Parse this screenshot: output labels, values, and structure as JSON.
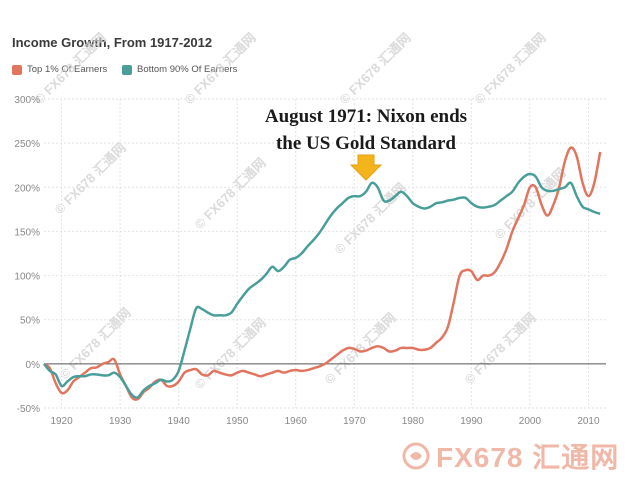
{
  "chart_data": {
    "type": "line",
    "title": "Income Growth, From 1917-2012",
    "xlabel": "",
    "ylabel": "",
    "xlim": [
      1917,
      2013
    ],
    "ylim": [
      -50,
      300
    ],
    "x_ticks": [
      1920,
      1930,
      1940,
      1950,
      1960,
      1970,
      1980,
      1990,
      2000,
      2010
    ],
    "y_ticks": [
      -50,
      0,
      50,
      100,
      150,
      200,
      250,
      300
    ],
    "y_tick_labels": [
      "-50%",
      "0%",
      "50%",
      "100%",
      "150%",
      "200%",
      "250%",
      "300%"
    ],
    "annotation": {
      "line1": "August 1971: Nixon ends",
      "line2": "the US Gold Standard",
      "x": 1972
    },
    "series": [
      {
        "name": "Top 1% Of Earners",
        "color": "#e07560",
        "x": [
          1917,
          1918,
          1919,
          1920,
          1921,
          1922,
          1923,
          1924,
          1925,
          1926,
          1927,
          1928,
          1929,
          1930,
          1931,
          1932,
          1933,
          1934,
          1935,
          1936,
          1937,
          1938,
          1939,
          1940,
          1941,
          1942,
          1943,
          1944,
          1945,
          1946,
          1947,
          1948,
          1949,
          1950,
          1951,
          1952,
          1953,
          1954,
          1955,
          1956,
          1957,
          1958,
          1959,
          1960,
          1961,
          1962,
          1963,
          1964,
          1965,
          1966,
          1967,
          1968,
          1969,
          1970,
          1971,
          1972,
          1973,
          1974,
          1975,
          1976,
          1977,
          1978,
          1979,
          1980,
          1981,
          1982,
          1983,
          1984,
          1985,
          1986,
          1987,
          1988,
          1989,
          1990,
          1991,
          1992,
          1993,
          1994,
          1995,
          1996,
          1997,
          1998,
          1999,
          2000,
          2001,
          2002,
          2003,
          2004,
          2005,
          2006,
          2007,
          2008,
          2009,
          2010,
          2011,
          2012
        ],
        "values": [
          0,
          -5,
          -22,
          -33,
          -30,
          -20,
          -15,
          -10,
          -5,
          -4,
          0,
          2,
          5,
          -12,
          -25,
          -38,
          -40,
          -32,
          -27,
          -20,
          -18,
          -25,
          -25,
          -20,
          -10,
          -7,
          -6,
          -12,
          -13,
          -8,
          -10,
          -12,
          -13,
          -10,
          -8,
          -10,
          -12,
          -14,
          -12,
          -10,
          -8,
          -10,
          -8,
          -7,
          -8,
          -7,
          -5,
          -3,
          0,
          5,
          10,
          15,
          18,
          17,
          14,
          15,
          18,
          20,
          18,
          14,
          15,
          18,
          18,
          18,
          16,
          16,
          18,
          24,
          30,
          42,
          70,
          100,
          106,
          105,
          95,
          100,
          100,
          104,
          115,
          130,
          150,
          165,
          180,
          200,
          200,
          180,
          168,
          180,
          200,
          230,
          245,
          235,
          205,
          190,
          205,
          240
        ]
      },
      {
        "name": "Bottom 90% Of Earners",
        "color": "#4a9e9a",
        "x": [
          1917,
          1918,
          1919,
          1920,
          1921,
          1922,
          1923,
          1924,
          1925,
          1926,
          1927,
          1928,
          1929,
          1930,
          1931,
          1932,
          1933,
          1934,
          1935,
          1936,
          1937,
          1938,
          1939,
          1940,
          1941,
          1942,
          1943,
          1944,
          1945,
          1946,
          1947,
          1948,
          1949,
          1950,
          1951,
          1952,
          1953,
          1954,
          1955,
          1956,
          1957,
          1958,
          1959,
          1960,
          1961,
          1962,
          1963,
          1964,
          1965,
          1966,
          1967,
          1968,
          1969,
          1970,
          1971,
          1972,
          1973,
          1974,
          1975,
          1976,
          1977,
          1978,
          1979,
          1980,
          1981,
          1982,
          1983,
          1984,
          1985,
          1986,
          1987,
          1988,
          1989,
          1990,
          1991,
          1992,
          1993,
          1994,
          1995,
          1996,
          1997,
          1998,
          1999,
          2000,
          2001,
          2002,
          2003,
          2004,
          2005,
          2006,
          2007,
          2008,
          2009,
          2010,
          2011,
          2012
        ],
        "values": [
          0,
          -8,
          -12,
          -25,
          -20,
          -15,
          -14,
          -14,
          -12,
          -12,
          -13,
          -13,
          -10,
          -15,
          -25,
          -35,
          -38,
          -30,
          -25,
          -22,
          -18,
          -20,
          -18,
          -8,
          15,
          40,
          63,
          62,
          58,
          55,
          55,
          55,
          58,
          68,
          77,
          85,
          90,
          95,
          102,
          110,
          105,
          110,
          118,
          120,
          125,
          133,
          140,
          148,
          158,
          168,
          176,
          182,
          188,
          190,
          190,
          195,
          205,
          200,
          185,
          185,
          190,
          195,
          190,
          182,
          178,
          176,
          178,
          182,
          183,
          185,
          186,
          188,
          188,
          182,
          178,
          177,
          178,
          180,
          185,
          190,
          195,
          205,
          212,
          215,
          212,
          200,
          196,
          196,
          198,
          200,
          205,
          190,
          178,
          175,
          172,
          170
        ]
      }
    ]
  },
  "watermark": {
    "text": "FX678 汇通网",
    "symbol": "©"
  }
}
